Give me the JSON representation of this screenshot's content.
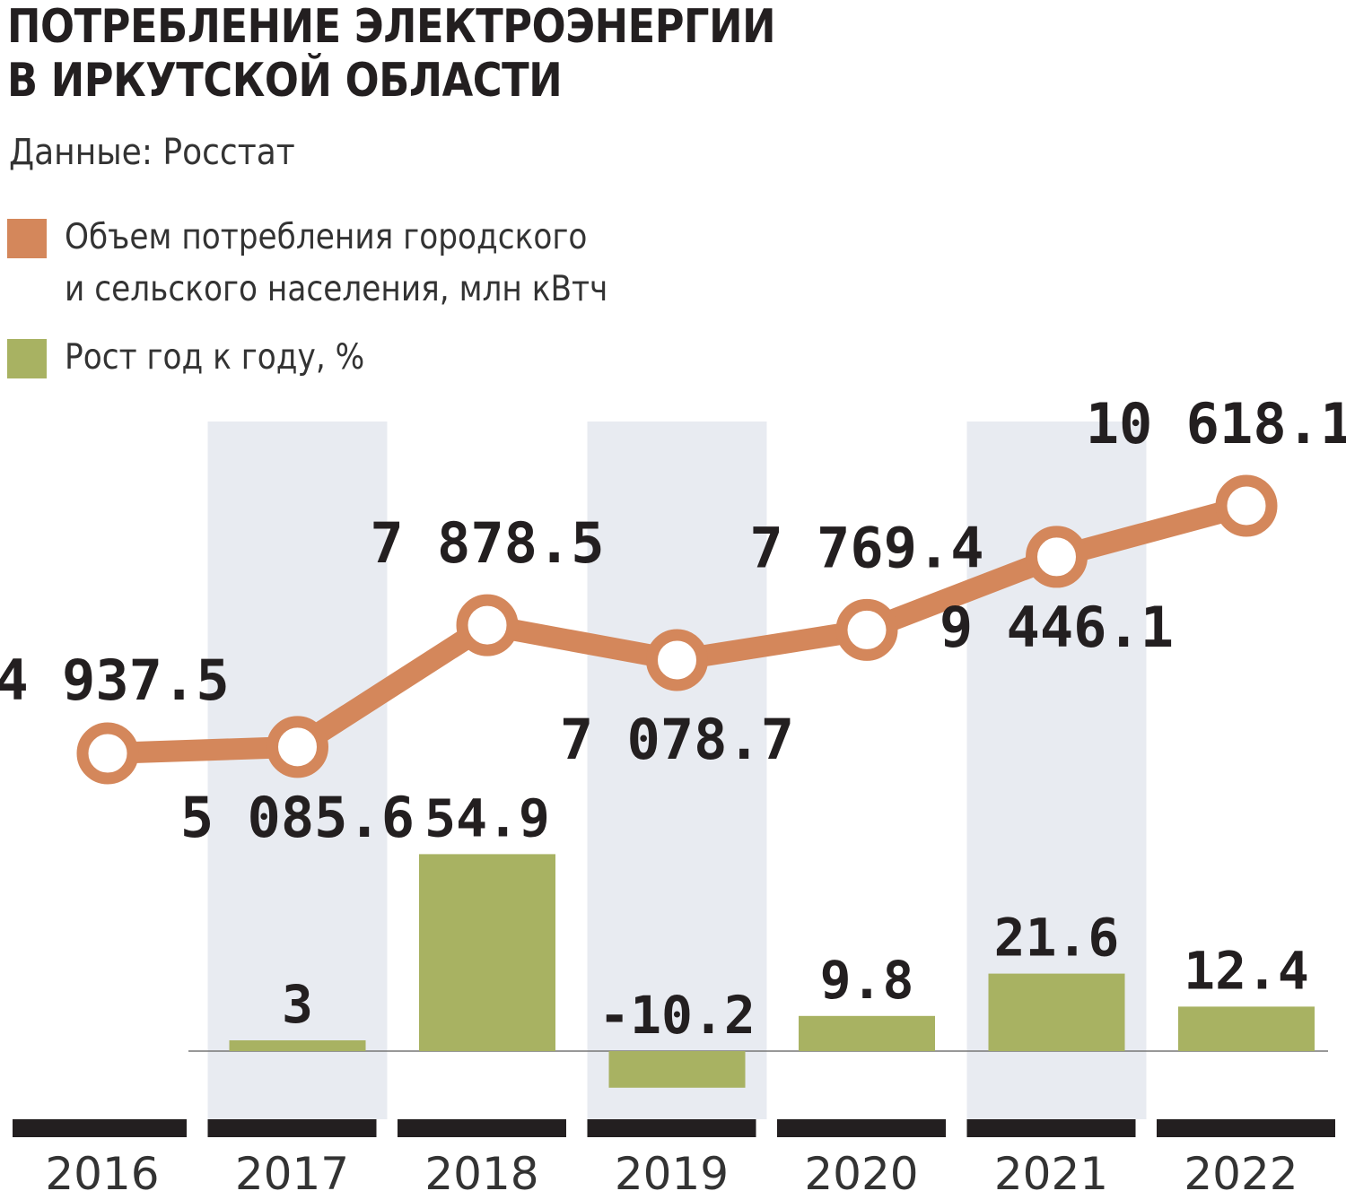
{
  "title": [
    "ПОТРЕБЛЕНИЕ ЭЛЕКТРОЭНЕРГИИ",
    "В ИРКУТСКОЙ ОБЛАСТИ"
  ],
  "source": "Данные:  Росстат",
  "legend": [
    {
      "lines": [
        "Объем потребления городского",
        "и сельского населения, млн кВтч"
      ],
      "color": "#d4875b"
    },
    {
      "lines": [
        "Рост год к году, %"
      ],
      "color": "#a8b262"
    }
  ],
  "colors": {
    "line": "#d4875b",
    "bar": "#a8b262",
    "band": "#e8ebf1",
    "axis": "#231f20"
  },
  "chart_data": {
    "type": "bar+line",
    "categories": [
      "2016",
      "2017",
      "2018",
      "2019",
      "2020",
      "2021",
      "2022"
    ],
    "series": [
      {
        "name": "Объем потребления городского и сельского населения, млн кВтч",
        "type": "line",
        "values": [
          4937.5,
          5085.6,
          7878.5,
          7078.7,
          7769.4,
          9446.1,
          10618.1
        ],
        "labels": [
          "4 937.5",
          "5 085.6",
          "7 878.5",
          "7 078.7",
          "7 769.4",
          "9 446.1",
          "10 618.1"
        ]
      },
      {
        "name": "Рост год к году, %",
        "type": "bar",
        "values": [
          null,
          3,
          54.9,
          -10.2,
          9.8,
          21.6,
          12.4
        ],
        "labels": [
          "",
          "3",
          "54.9",
          "-10.2",
          "9.8",
          "21.6",
          "12.4"
        ]
      }
    ],
    "grid": false,
    "legend_position": "top-left"
  }
}
